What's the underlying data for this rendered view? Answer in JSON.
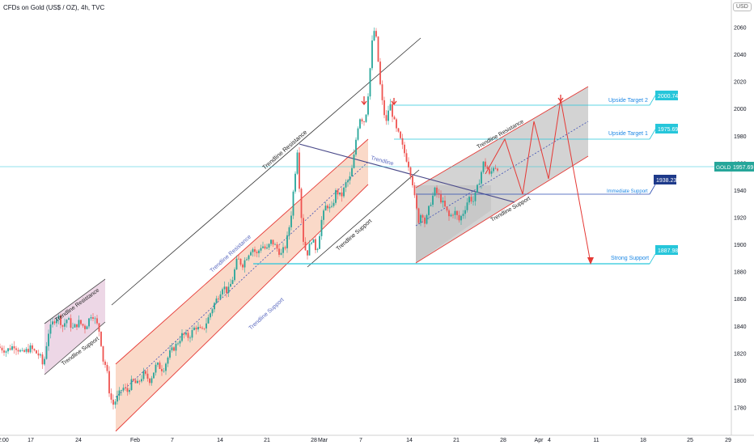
{
  "header": {
    "title": "CFDs on Gold (US$ / OZ), 4h, TVC"
  },
  "currency": "USD",
  "chart_data": {
    "type": "candlestick",
    "instrument": "GOLD",
    "timeframe": "4h",
    "ylim": [
      1765,
      2072
    ],
    "yticks": [
      1780,
      1800,
      1820,
      1840,
      1860,
      1880,
      1900,
      1920,
      1940,
      1960,
      1980,
      2000,
      2020,
      2040,
      2060
    ],
    "xticks": [
      {
        "label": "2:00",
        "x": 4
      },
      {
        "label": "17",
        "x": 38
      },
      {
        "label": "24",
        "x": 97
      },
      {
        "label": "Feb",
        "x": 167
      },
      {
        "label": "7",
        "x": 213
      },
      {
        "label": "14",
        "x": 272
      },
      {
        "label": "21",
        "x": 330
      },
      {
        "label": "28",
        "x": 388
      },
      {
        "label": "Mar",
        "x": 399
      },
      {
        "label": "7",
        "x": 446
      },
      {
        "label": "14",
        "x": 506
      },
      {
        "label": "21",
        "x": 564
      },
      {
        "label": "28",
        "x": 622
      },
      {
        "label": "Apr",
        "x": 666
      },
      {
        "label": "4",
        "x": 679
      },
      {
        "label": "11",
        "x": 737
      },
      {
        "label": "18",
        "x": 795
      },
      {
        "label": "25",
        "x": 853
      },
      {
        "label": "29",
        "x": 900
      }
    ],
    "price_path": [
      [
        0,
        1825
      ],
      [
        10,
        1822
      ],
      [
        20,
        1826
      ],
      [
        30,
        1820
      ],
      [
        40,
        1824
      ],
      [
        52,
        1818
      ],
      [
        56,
        1810
      ],
      [
        62,
        1835
      ],
      [
        68,
        1843
      ],
      [
        74,
        1848
      ],
      [
        80,
        1840
      ],
      [
        86,
        1846
      ],
      [
        92,
        1838
      ],
      [
        100,
        1843
      ],
      [
        108,
        1839
      ],
      [
        116,
        1850
      ],
      [
        122,
        1842
      ],
      [
        126,
        1835
      ],
      [
        130,
        1815
      ],
      [
        134,
        1810
      ],
      [
        138,
        1790
      ],
      [
        142,
        1782
      ],
      [
        148,
        1788
      ],
      [
        154,
        1795
      ],
      [
        160,
        1792
      ],
      [
        166,
        1800
      ],
      [
        172,
        1797
      ],
      [
        180,
        1805
      ],
      [
        188,
        1800
      ],
      [
        196,
        1812
      ],
      [
        204,
        1808
      ],
      [
        212,
        1820
      ],
      [
        220,
        1826
      ],
      [
        228,
        1834
      ],
      [
        236,
        1832
      ],
      [
        244,
        1840
      ],
      [
        252,
        1836
      ],
      [
        260,
        1846
      ],
      [
        266,
        1855
      ],
      [
        272,
        1862
      ],
      [
        278,
        1870
      ],
      [
        284,
        1865
      ],
      [
        290,
        1875
      ],
      [
        296,
        1890
      ],
      [
        302,
        1885
      ],
      [
        308,
        1892
      ],
      [
        314,
        1898
      ],
      [
        320,
        1893
      ],
      [
        326,
        1900
      ],
      [
        332,
        1896
      ],
      [
        338,
        1903
      ],
      [
        344,
        1898
      ],
      [
        350,
        1893
      ],
      [
        356,
        1900
      ],
      [
        362,
        1920
      ],
      [
        366,
        1945
      ],
      [
        370,
        1970
      ],
      [
        374,
        1928
      ],
      [
        378,
        1900
      ],
      [
        382,
        1893
      ],
      [
        388,
        1905
      ],
      [
        394,
        1895
      ],
      [
        400,
        1918
      ],
      [
        406,
        1930
      ],
      [
        412,
        1925
      ],
      [
        418,
        1940
      ],
      [
        424,
        1935
      ],
      [
        430,
        1945
      ],
      [
        436,
        1950
      ],
      [
        440,
        1965
      ],
      [
        444,
        1985
      ],
      [
        448,
        1995
      ],
      [
        452,
        1990
      ],
      [
        456,
        2000
      ],
      [
        460,
        2030
      ],
      [
        464,
        2060
      ],
      [
        468,
        2050
      ],
      [
        472,
        2020
      ],
      [
        476,
        2000
      ],
      [
        480,
        1990
      ],
      [
        484,
        2005
      ],
      [
        488,
        1995
      ],
      [
        492,
        1985
      ],
      [
        496,
        1980
      ],
      [
        500,
        1972
      ],
      [
        504,
        1965
      ],
      [
        508,
        1958
      ],
      [
        512,
        1948
      ],
      [
        516,
        1930
      ],
      [
        520,
        1918
      ],
      [
        524,
        1925
      ],
      [
        528,
        1915
      ],
      [
        534,
        1930
      ],
      [
        540,
        1940
      ],
      [
        546,
        1935
      ],
      [
        552,
        1928
      ],
      [
        558,
        1920
      ],
      [
        564,
        1925
      ],
      [
        570,
        1918
      ],
      [
        576,
        1925
      ],
      [
        582,
        1935
      ],
      [
        588,
        1932
      ],
      [
        594,
        1945
      ],
      [
        600,
        1960
      ],
      [
        604,
        1958
      ],
      [
        608,
        1950
      ],
      [
        612,
        1958
      ],
      [
        616,
        1957
      ]
    ],
    "horizontal_levels": [
      {
        "name": "Upside Target 2",
        "value": 2000.74,
        "label": "2000.74"
      },
      {
        "name": "Upside Target 1",
        "value": 1975.69,
        "label": "1975.69"
      },
      {
        "name": "Immediate Support",
        "value": 1938.23,
        "label": "1938.23"
      },
      {
        "name": "Strong Support",
        "value": 1887.98,
        "label": "1887.98"
      }
    ],
    "current_price": {
      "symbol": "GOLD",
      "value": 1957.69,
      "label": "1957.69"
    },
    "annotations": [
      "Trendline Resistance",
      "Trendline Support",
      "Trendline Resistance",
      "Trendline Support",
      "Trendline Resistance",
      "Trendline Support",
      "Trendline",
      "Trendline Resistance",
      "Trendline Support",
      "Upside Target 2",
      "Upside Target 1",
      "Immediate Support",
      "Strong Support"
    ],
    "colors": {
      "up": "#26a69a",
      "down": "#ef5350",
      "channel_red": "#e53935",
      "channel_fill": "#f8c9b0",
      "range_fill": "#c4c4c4",
      "label_teal": "#26c6da",
      "label_navy": "#1e3a8a",
      "trendline": "#4a4a8a"
    }
  }
}
